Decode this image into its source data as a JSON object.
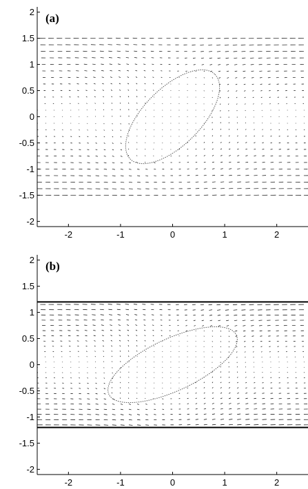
{
  "colors": {
    "arrow": "#000000",
    "ellipse": "#555555",
    "axis": "#000000",
    "wall": "#000000"
  },
  "chart_data": [
    {
      "type": "quiver",
      "panel_label": "(a)",
      "xlim": [
        -2.6,
        2.6
      ],
      "ylim": [
        -2.1,
        2.1
      ],
      "x_ticks": [
        -2,
        -1,
        0,
        1,
        2
      ],
      "y_ticks": [
        -2,
        -1.5,
        -1,
        -0.5,
        0,
        0.5,
        1,
        1.5,
        2
      ],
      "x_tick_labels": [
        "-2",
        "-1",
        "0",
        "1",
        "2"
      ],
      "y_tick_labels": [
        "-2",
        "-1.5",
        "-1",
        "-0.5",
        "0",
        "0.5",
        "1",
        "1.5",
        "2"
      ],
      "channel_half_width": 1.5,
      "walls_drawn": false,
      "velocity_grid": {
        "x_range": [
          -2.6,
          2.6
        ],
        "y_range": [
          -1.5,
          1.5
        ],
        "dx": 0.16,
        "dy": 0.125
      },
      "particle": {
        "center": [
          0,
          0
        ],
        "semi_major": 1.15,
        "semi_minor": 0.55,
        "angle_deg": 45
      },
      "title": "",
      "xlabel": "",
      "ylabel": ""
    },
    {
      "type": "quiver",
      "panel_label": "(b)",
      "xlim": [
        -2.6,
        2.6
      ],
      "ylim": [
        -2.1,
        2.1
      ],
      "x_ticks": [
        -2,
        -1,
        0,
        1,
        2
      ],
      "y_ticks": [
        -2,
        -1.5,
        -1,
        -0.5,
        0,
        0.5,
        1,
        1.5,
        2
      ],
      "x_tick_labels": [
        "-2",
        "-1",
        "0",
        "1",
        "2"
      ],
      "y_tick_labels": [
        "-2",
        "-1.5",
        "-1",
        "-0.5",
        "0",
        "0.5",
        "1",
        "1.5",
        "2"
      ],
      "channel_half_width": 1.2,
      "walls_drawn": true,
      "velocity_grid": {
        "x_range": [
          -2.6,
          2.6
        ],
        "y_range": [
          -1.15,
          1.15
        ],
        "dx": 0.16,
        "dy": 0.1
      },
      "particle": {
        "center": [
          0,
          0
        ],
        "semi_major": 1.35,
        "semi_minor": 0.5,
        "angle_deg": 25
      },
      "title": "",
      "xlabel": "",
      "ylabel": ""
    }
  ]
}
